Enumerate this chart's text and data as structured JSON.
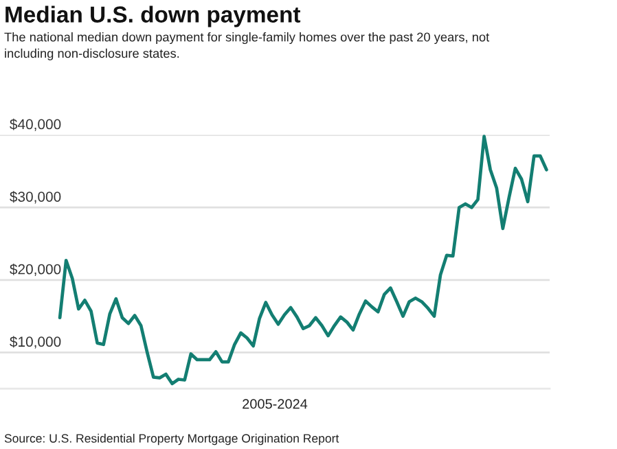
{
  "chart_data": {
    "type": "line",
    "title": "Median U.S. down payment",
    "subtitle": "The national median down payment for single-family homes over the past 20 years, not including non-disclosure states.",
    "xlabel": "2005-2024",
    "annotations": [
      "Source: U.S. Residential Property Mortgage Origination Report"
    ],
    "categories": [
      null,
      null,
      null,
      null,
      null,
      null,
      null,
      null,
      null,
      null,
      null,
      null,
      null,
      null,
      null,
      null,
      null,
      null,
      null,
      null,
      null,
      null,
      null,
      null,
      null,
      null,
      null,
      null,
      null,
      null,
      null,
      null,
      null,
      null,
      null,
      null,
      null,
      null,
      null,
      null,
      null,
      null,
      null,
      null,
      null,
      null,
      null,
      null,
      null,
      null,
      null,
      null,
      null,
      null,
      null,
      null,
      null,
      null,
      null,
      null,
      null,
      null,
      null,
      null,
      null,
      null,
      null,
      null,
      null,
      null,
      null,
      null,
      null,
      null,
      null,
      null,
      null,
      null,
      null
    ],
    "values": [
      14800,
      22700,
      20200,
      16000,
      17200,
      15700,
      11300,
      11100,
      15300,
      17400,
      14800,
      14000,
      15100,
      13700,
      10000,
      6600,
      6500,
      7000,
      5700,
      6300,
      6200,
      9800,
      9000,
      9000,
      9000,
      10100,
      8700,
      8700,
      11100,
      12700,
      12000,
      10900,
      14700,
      16900,
      15200,
      13900,
      15200,
      16200,
      14900,
      13300,
      13700,
      14800,
      13700,
      12300,
      13700,
      14900,
      14200,
      13100,
      15300,
      17100,
      16300,
      15600,
      18000,
      18900,
      17000,
      15000,
      17000,
      17500,
      17000,
      16100,
      15000,
      20700,
      23400,
      23300,
      30000,
      30500,
      30000,
      31100,
      39800,
      35200,
      32700,
      27100,
      31400,
      35400,
      33900,
      30800,
      37100,
      37100,
      35200
    ],
    "color": "#137e72",
    "ylim": [
      5000,
      40000
    ],
    "yticks": [
      {
        "value": 10000,
        "label": "$10,000"
      },
      {
        "value": 20000,
        "label": "$20,000"
      },
      {
        "value": 30000,
        "label": "$30,000"
      },
      {
        "value": 40000,
        "label": "$40,000"
      }
    ],
    "grid": "y",
    "tick_labels": "y"
  }
}
